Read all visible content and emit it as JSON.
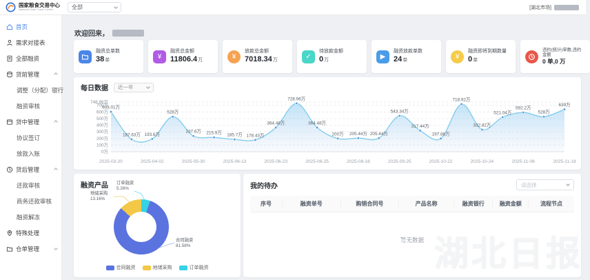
{
  "header": {
    "logo_title": "国家粮食交易中心",
    "logo_subtitle": "National Grain Trade Center",
    "market_select_value": "全部",
    "market_label": "[湖北市场]"
  },
  "sidebar": {
    "items": [
      {
        "label": "首页",
        "active": true
      },
      {
        "label": "需求对接表"
      },
      {
        "label": "全部融资"
      },
      {
        "label": "贷前管理",
        "arrow": "up"
      },
      {
        "label": "调整（分配）银行"
      },
      {
        "label": "融资审核"
      },
      {
        "label": "贷中管理",
        "arrow": "up"
      },
      {
        "label": "协议签订"
      },
      {
        "label": "放款入账"
      },
      {
        "label": "贷后管理",
        "arrow": "up"
      },
      {
        "label": "还款审核"
      },
      {
        "label": "商务还款审核"
      },
      {
        "label": "融资解冻"
      },
      {
        "label": "特殊处理"
      },
      {
        "label": "仓单管理",
        "arrow": "down"
      }
    ]
  },
  "welcome": {
    "text": "欢迎回来，"
  },
  "stat_cards": [
    {
      "title": "融资总单数",
      "value": "38",
      "unit": "单",
      "icon_color": "#4a86e8",
      "icon": "folder-icon"
    },
    {
      "title": "融资总金额",
      "value": "11806.4",
      "unit": "万",
      "icon_color": "#b05ce6",
      "icon": "money-icon"
    },
    {
      "title": "放款总金额",
      "value": "7018.34",
      "unit": "万",
      "icon_color": "#f5a352",
      "icon": "coin-icon"
    },
    {
      "title": "待放款金额",
      "value": "0",
      "unit": "万",
      "icon_color": "#4ad6c8",
      "icon": "check-icon"
    },
    {
      "title": "融资放款单数",
      "value": "24",
      "unit": "单",
      "icon_color": "#4a9ce8",
      "icon": "send-icon"
    },
    {
      "title": "融资即将到期数量",
      "value": "0",
      "unit": "单",
      "icon_color": "#f5cc4a",
      "icon": "coin-icon"
    },
    {
      "title": "违约(统计)单数,违约金额",
      "value_text": "0 单,0 万",
      "icon_color": "#e8574a",
      "icon": "clock-icon"
    }
  ],
  "daily_panel": {
    "title": "每日数据",
    "range_select_value": "近一年"
  },
  "chart_data": [
    {
      "type": "line",
      "title": "每日数据",
      "x_labels": [
        "2025-03-20",
        "2025-04-02",
        "2025-05-30",
        "2025-06-13",
        "2025-06-23",
        "2025-06-25",
        "2025-08-18",
        "2025-09-25",
        "2025-10-22",
        "2025-10-24",
        "2025-11-06",
        "2025-11-18"
      ],
      "values": [
        603.01,
        187.63,
        193.6,
        528,
        237.6,
        215.9,
        185.7,
        178.43,
        364.48,
        728.96,
        364.48,
        200,
        205.44,
        205.44,
        543.34,
        317.44,
        197.88,
        718.92,
        332.82,
        521.04,
        592.2,
        528,
        639
      ],
      "point_labels": [
        "603.01万",
        "187.63万",
        "193.6万",
        "528万",
        "237.6万",
        "215.9万",
        "185.7万",
        "178.43万",
        "364.48万",
        "728.96万",
        "364.48万",
        "200万",
        "205.44万",
        "205.44万",
        "543.34万",
        "317.44万",
        "197.88万",
        "718.92万",
        "332.82万",
        "521.04万",
        "592.2万",
        "528万",
        "639万"
      ],
      "ytick_values": [
        748.96,
        700,
        600,
        500,
        400,
        300,
        200,
        100,
        0
      ],
      "ytick_labels": [
        "748.96万",
        "700万",
        "600万",
        "500万",
        "400万",
        "300万",
        "200万",
        "100万",
        "0万"
      ],
      "ylim": [
        0,
        748.96
      ],
      "unit": "万",
      "grid": true,
      "line_color": "#85cdec",
      "point_color": "#5b9fd8",
      "area_top_color": "rgba(130,200,240,0.5)",
      "area_bottom_color": "rgba(165,195,235,0.07)"
    },
    {
      "type": "pie",
      "title": "融资产品",
      "slices": [
        {
          "label": "订单融资",
          "pct": 5.26,
          "pct_text": "5.26%",
          "color": "#36d2e5"
        },
        {
          "label": "合同融资",
          "pct": 81.58,
          "pct_text": "81.58%",
          "color": "#5b73df"
        },
        {
          "label": "地储采购",
          "pct": 13.16,
          "pct_text": "13.16%",
          "color": "#f3c846"
        }
      ]
    }
  ],
  "products_panel": {
    "title": "融资产品",
    "legend": [
      {
        "label": "合同融资",
        "color": "#5b73df"
      },
      {
        "label": "地储采购",
        "color": "#f3c846"
      },
      {
        "label": "订单融资",
        "color": "#36d2e5"
      }
    ]
  },
  "todo_panel": {
    "title": "我的待办",
    "filter_value": "请选择",
    "columns": [
      "序号",
      "融资单号",
      "购销合同号",
      "产品名称",
      "融资银行",
      "融资金额",
      "流程节点"
    ],
    "empty_text": "暂无数据"
  },
  "watermark": {
    "text": "湖北日报"
  }
}
